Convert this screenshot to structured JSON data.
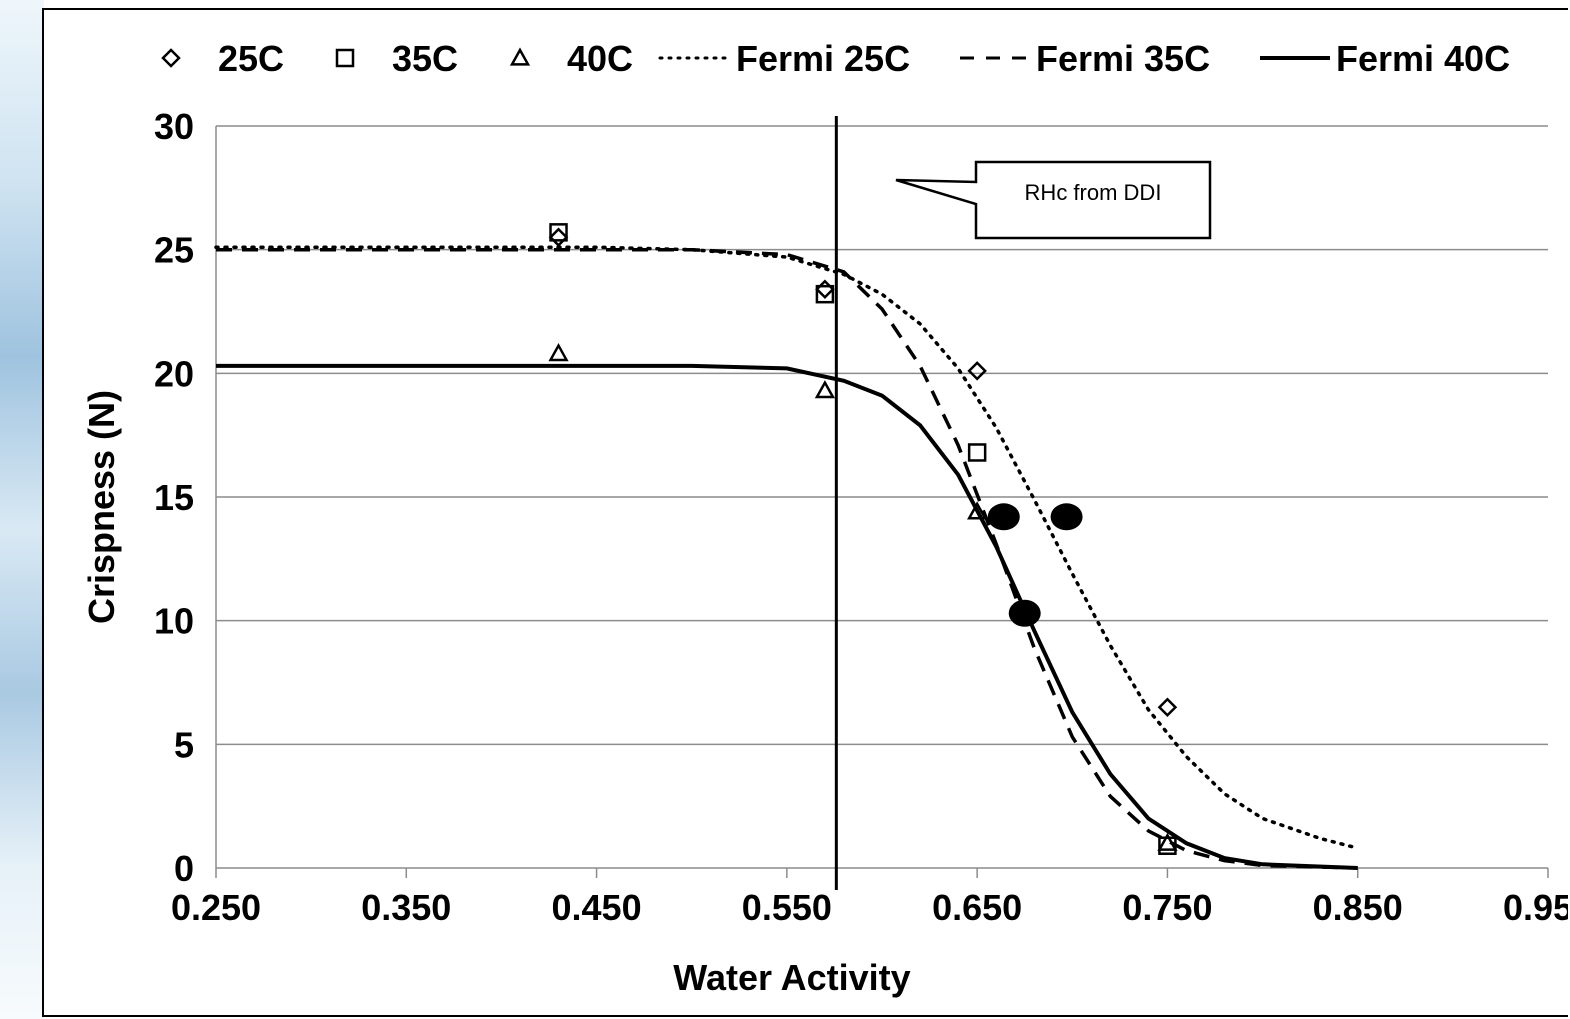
{
  "chart_data": {
    "type": "scatter",
    "xlabel": "Water Activity",
    "ylabel": "Crispness (N)",
    "xlim": [
      0.25,
      0.95
    ],
    "ylim": [
      0,
      30
    ],
    "x_ticks": [
      "0.250",
      "0.350",
      "0.450",
      "0.550",
      "0.650",
      "0.750",
      "0.850",
      "0.950"
    ],
    "x_tick_values": [
      0.25,
      0.35,
      0.45,
      0.55,
      0.65,
      0.75,
      0.85,
      0.95
    ],
    "y_ticks": [
      "0",
      "5",
      "10",
      "15",
      "20",
      "25",
      "30"
    ],
    "y_tick_values": [
      0,
      5,
      10,
      15,
      20,
      25,
      30
    ],
    "grid": "horizontal",
    "legend_position": "top",
    "series": [
      {
        "name": "25C",
        "marker": "diamond",
        "x": [
          0.43,
          0.57,
          0.65,
          0.75
        ],
        "y": [
          25.5,
          23.4,
          20.1,
          6.5
        ]
      },
      {
        "name": "35C",
        "marker": "square",
        "x": [
          0.43,
          0.57,
          0.65,
          0.75
        ],
        "y": [
          25.7,
          23.2,
          16.8,
          0.9
        ]
      },
      {
        "name": "40C",
        "marker": "triangle",
        "x": [
          0.43,
          0.57,
          0.65,
          0.75
        ],
        "y": [
          20.8,
          19.3,
          14.4,
          1.0
        ]
      }
    ],
    "fitted_curves": [
      {
        "name": "Fermi 25C",
        "style": "dotted",
        "x": [
          0.25,
          0.35,
          0.45,
          0.5,
          0.55,
          0.58,
          0.6,
          0.62,
          0.64,
          0.66,
          0.68,
          0.7,
          0.72,
          0.74,
          0.76,
          0.78,
          0.8,
          0.83,
          0.85
        ],
        "y": [
          25.1,
          25.1,
          25.1,
          25.0,
          24.7,
          24.0,
          23.2,
          22.0,
          20.2,
          17.8,
          14.9,
          11.9,
          9.0,
          6.4,
          4.5,
          3.0,
          2.0,
          1.2,
          0.8
        ]
      },
      {
        "name": "Fermi 35C",
        "style": "dashed",
        "x": [
          0.25,
          0.35,
          0.45,
          0.5,
          0.55,
          0.58,
          0.6,
          0.62,
          0.64,
          0.66,
          0.68,
          0.7,
          0.72,
          0.74,
          0.76,
          0.78,
          0.8,
          0.85
        ],
        "y": [
          25.0,
          25.0,
          25.0,
          25.0,
          24.8,
          24.1,
          22.6,
          20.3,
          17.1,
          13.1,
          8.9,
          5.3,
          2.9,
          1.5,
          0.7,
          0.3,
          0.1,
          0.0
        ]
      },
      {
        "name": "Fermi 40C",
        "style": "solid",
        "x": [
          0.25,
          0.35,
          0.45,
          0.5,
          0.55,
          0.58,
          0.6,
          0.62,
          0.64,
          0.66,
          0.68,
          0.7,
          0.72,
          0.74,
          0.76,
          0.78,
          0.8,
          0.85
        ],
        "y": [
          20.3,
          20.3,
          20.3,
          20.3,
          20.2,
          19.7,
          19.1,
          17.9,
          15.9,
          13.0,
          9.6,
          6.3,
          3.8,
          2.0,
          1.0,
          0.4,
          0.15,
          0.0
        ]
      }
    ],
    "highlight_points": {
      "x": [
        0.664,
        0.697,
        0.675
      ],
      "y": [
        14.2,
        14.2,
        10.3
      ]
    },
    "vertical_line_x": 0.576,
    "annotation": {
      "text": "RHc from DDI"
    }
  }
}
